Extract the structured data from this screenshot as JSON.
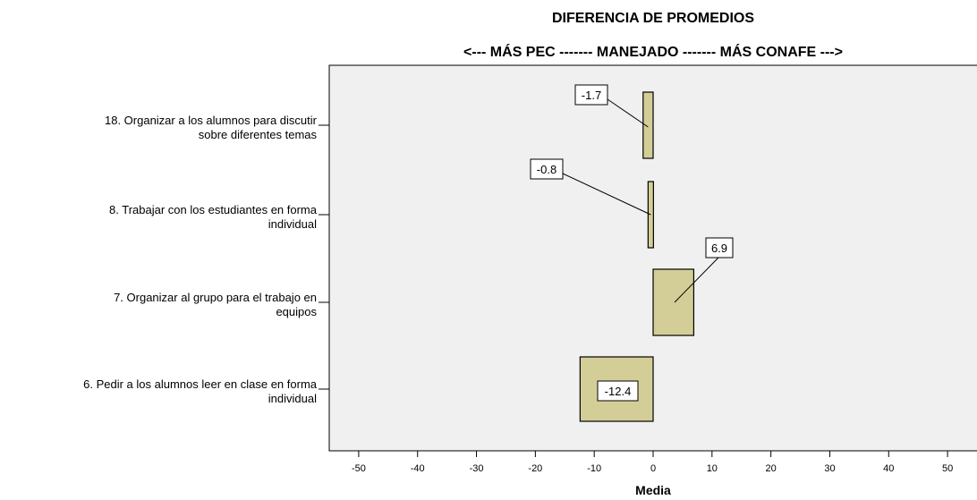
{
  "chart_data": {
    "type": "bar",
    "orientation": "horizontal",
    "title": "DIFERENCIA DE PROMEDIOS",
    "subtitle": "<--- MÁS PEC ------- MANEJADO ------- MÁS CONAFE --->",
    "xlabel": "Media",
    "ylabel": "",
    "xlim": [
      -55,
      55
    ],
    "xticks": [
      "-50",
      "-40",
      "-30",
      "-20",
      "-10",
      "0",
      "10",
      "20",
      "30",
      "40",
      "50"
    ],
    "categories": [
      [
        "18. Organizar a los alumnos para discutir",
        "sobre diferentes temas"
      ],
      [
        "8. Trabajar con los estudiantes en forma",
        "individual"
      ],
      [
        "7. Organizar al grupo para el trabajo en",
        "equipos"
      ],
      [
        "6. Pedir a los alumnos leer en clase en forma",
        "individual"
      ]
    ],
    "values": [
      -1.7,
      -0.8,
      6.9,
      -12.4
    ],
    "data_labels": [
      "-1.7",
      "-0.8",
      "6.9",
      "-12.4"
    ],
    "colors": {
      "plot_bg": "#f0f0f0",
      "bar_fill": "#d3ce97",
      "bar_stroke": "#000000"
    },
    "grid": false,
    "legend": "none"
  }
}
